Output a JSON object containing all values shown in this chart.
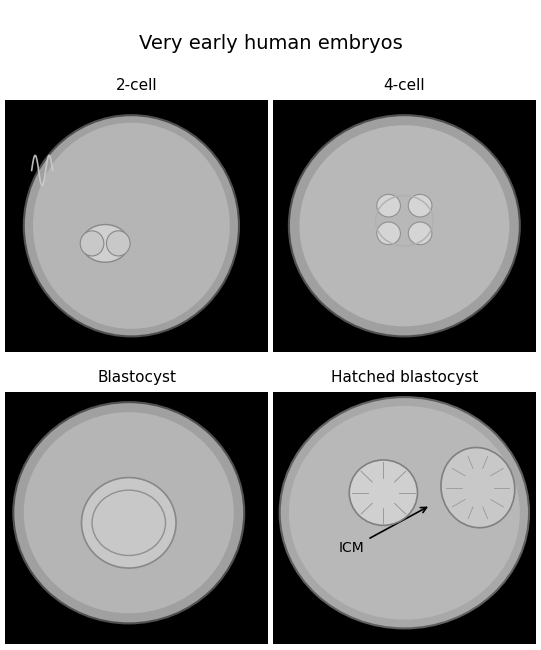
{
  "title": "Very early human embryos",
  "title_fontsize": 14,
  "title_fontweight": "normal",
  "labels": [
    "2-cell",
    "4-cell",
    "Blastocyst",
    "Hatched blastocyst"
  ],
  "label_fontsize": 11,
  "icm_label": "ICM",
  "icm_fontsize": 10,
  "bg_color": "#000000",
  "fig_bg": "#ffffff",
  "label_color": "#000000",
  "title_color": "#000000"
}
